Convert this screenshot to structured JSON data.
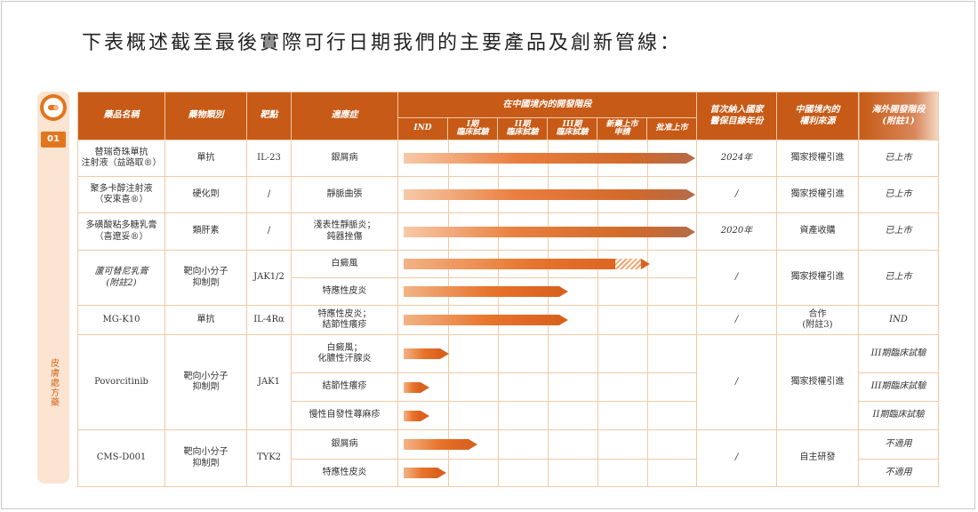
{
  "title": "下表概述截至最後實際可行日期我們的主要產品及創新管線：",
  "side": {
    "number": "01",
    "category": "皮膚處方藥"
  },
  "headers": {
    "name": "藥品名稱",
    "drug_type": "藥物類別",
    "target": "靶點",
    "indication": "適應症",
    "stage_group": "在中國境內的開發階段",
    "stages": [
      "IND",
      "I期\n臨床試驗",
      "II期\n臨床試驗",
      "III期\n臨床試驗",
      "新藥上市\n申請",
      "批准上市"
    ],
    "nrdl": "首次納入國家\n醫保目錄年份",
    "rights": "中國境內的\n權利來源",
    "overseas": "海外開發階段\n(附註1)"
  },
  "rows": [
    {
      "name": "替瑞奇珠單抗\n注射液（益路取®）",
      "type": "單抗",
      "target": "IL-23",
      "indication": "銀屑病",
      "progress": 1.0,
      "nrdl": "2024年",
      "rights": "獨家授權引進",
      "overseas": "已上市"
    },
    {
      "name": "聚多卡醇注射液\n（安束喜®）",
      "type": "硬化劑",
      "target": "/",
      "indication": "靜脈曲張",
      "progress": 1.0,
      "nrdl": "/",
      "rights": "獨家授權引進",
      "overseas": "已上市"
    },
    {
      "name": "多磺酸粘多糖乳膏\n（喜遼妥®）",
      "type": "類肝素",
      "target": "/",
      "indication": "淺表性靜脈炎；\n鈍器挫傷",
      "progress": 1.0,
      "nrdl": "2020年",
      "rights": "資產收購",
      "overseas": "已上市"
    },
    {
      "name": "蘆可替尼乳膏\n(附註2)",
      "type": "靶向小分子\n抑制劑",
      "target": "JAK1/2",
      "indication": "白癜風",
      "progress": 0.84,
      "hatch_from": 0.75,
      "nrdl": "/",
      "rights": "獨家授權引進",
      "overseas": "已上市"
    },
    {
      "indication": "特應性皮炎",
      "progress": 0.55
    },
    {
      "name": "MG-K10",
      "type": "單抗",
      "target": "IL-4Rα",
      "indication": "特應性皮炎；\n結節性癢疹",
      "progress": 0.55,
      "nrdl": "/",
      "rights": "合作\n(附註3)",
      "overseas": "IND"
    },
    {
      "name": "Povorcitinib",
      "type": "靶向小分子\n抑制劑",
      "target": "JAK1",
      "indication": "白癜風；\n化膿性汗腺炎",
      "progress": 0.13,
      "nrdl": "/",
      "rights": "獨家授權引進",
      "overseas": "III期臨床試驗"
    },
    {
      "indication": "結節性癢疹",
      "progress": 0.06,
      "overseas": "III期臨床試驗"
    },
    {
      "indication": "慢性自發性蕁麻疹",
      "progress": 0.06,
      "overseas": "II期臨床試驗"
    },
    {
      "name": "CMS-D001",
      "type": "靶向小分子\n抑制劑",
      "target": "TYK2",
      "indication": "銀屑病",
      "progress": 0.23,
      "nrdl": "/",
      "rights": "自主研發",
      "overseas": "不適用"
    },
    {
      "indication": "特應性皮炎",
      "progress": 0.12,
      "overseas": "不適用"
    }
  ],
  "colors": {
    "header": "#c65a16",
    "accent": "#e2761d",
    "bar": "#e8732a",
    "border": "#f2c9a6"
  },
  "icons": {
    "logo": "capsule-logo-icon"
  }
}
